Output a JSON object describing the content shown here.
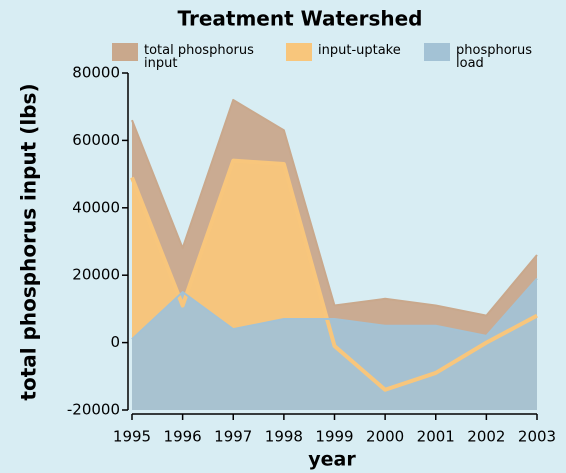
{
  "chart_data": {
    "type": "area",
    "title": "Treatment Watershed",
    "x_label": "year",
    "y_label": "total phosphorus input (lbs)",
    "categories": [
      "1995",
      "1996",
      "1997",
      "1998",
      "1999",
      "2000",
      "2001",
      "2002",
      "2003"
    ],
    "series": [
      {
        "name": "total phosphorus input",
        "color": "#c9a88c",
        "values": [
          66000,
          28000,
          72000,
          63000,
          11000,
          13000,
          11000,
          8000,
          26000
        ]
      },
      {
        "name": "input-uptake",
        "color": "#f8c67c",
        "values": [
          49000,
          11000,
          54000,
          53000,
          -1000,
          -14000,
          -9000,
          0,
          8000
        ]
      },
      {
        "name": "phosphorus load",
        "color": "#a3c2d5",
        "values": [
          1000,
          15000,
          4000,
          7000,
          7000,
          5000,
          5000,
          2000,
          19000
        ]
      }
    ],
    "ylim": [
      -20000,
      80000
    ],
    "yticks": [
      -20000,
      0,
      20000,
      40000,
      60000,
      80000
    ]
  }
}
